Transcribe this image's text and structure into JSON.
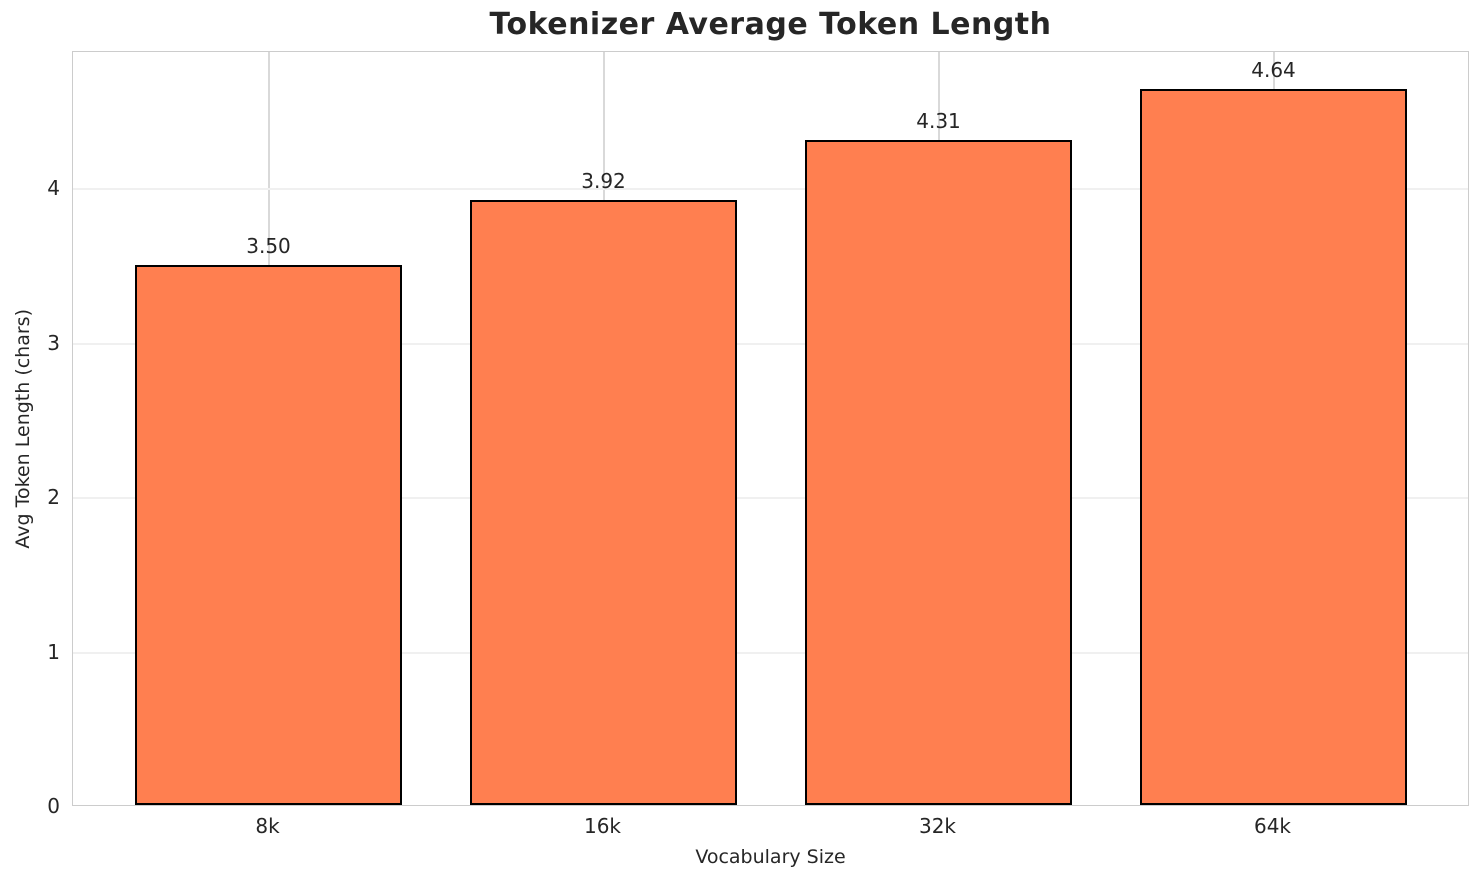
{
  "chart_data": {
    "type": "bar",
    "title": "Tokenizer Average Token Length",
    "xlabel": "Vocabulary Size",
    "ylabel": "Avg Token Length (chars)",
    "categories": [
      "8k",
      "16k",
      "32k",
      "64k"
    ],
    "values": [
      3.5,
      3.92,
      4.31,
      4.64
    ],
    "value_labels": [
      "3.50",
      "3.92",
      "4.31",
      "4.64"
    ],
    "yticks": [
      0,
      1,
      2,
      3,
      4
    ],
    "ylim": [
      0,
      4.89
    ],
    "grid": true,
    "legend": "none",
    "bar_color": "#ff7f50",
    "bar_edge_color": "#000000",
    "background_color": "#ffffff",
    "text_color": "#262626"
  }
}
